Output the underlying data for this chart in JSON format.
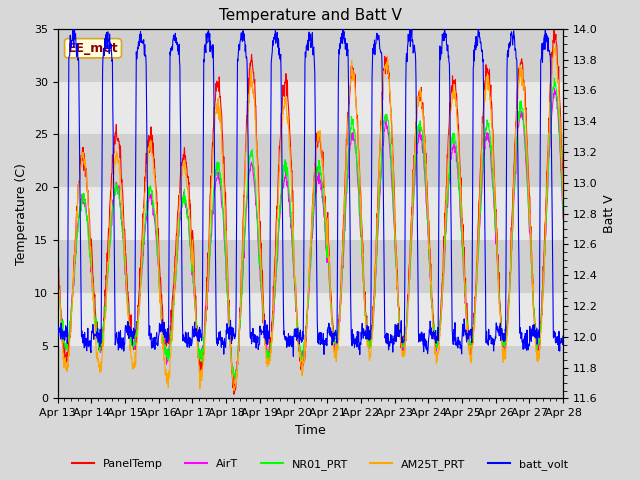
{
  "title": "Temperature and Batt V",
  "xlabel": "Time",
  "ylabel_left": "Temperature (C)",
  "ylabel_right": "Batt V",
  "annotation": "EE_met",
  "xlim_days": [
    0,
    15
  ],
  "ylim_left": [
    0,
    35
  ],
  "ylim_right": [
    11.6,
    14.0
  ],
  "x_tick_labels": [
    "Apr 13",
    "Apr 14",
    "Apr 15",
    "Apr 16",
    "Apr 17",
    "Apr 18",
    "Apr 19",
    "Apr 20",
    "Apr 21",
    "Apr 22",
    "Apr 23",
    "Apr 24",
    "Apr 25",
    "Apr 26",
    "Apr 27",
    "Apr 28"
  ],
  "legend_entries": [
    "PanelTemp",
    "AirT",
    "NR01_PRT",
    "AM25T_PRT",
    "batt_volt"
  ],
  "line_colors": [
    "red",
    "magenta",
    "lime",
    "orange",
    "blue"
  ],
  "background_color": "#d8d8d8",
  "plot_bg_color": "#e8e8e8",
  "stripe_light": "#e8e8e8",
  "stripe_dark": "#d0d0d0",
  "title_fontsize": 11,
  "label_fontsize": 9,
  "tick_fontsize": 8
}
